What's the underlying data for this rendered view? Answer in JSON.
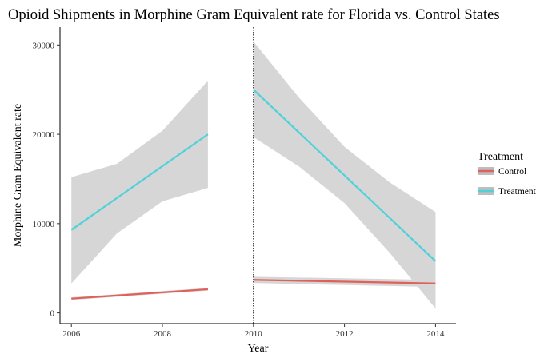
{
  "chart_data": {
    "type": "line",
    "title": "Opioid Shipments in Morphine Gram Equivalent rate for Florida vs. Control States",
    "xlabel": "Year",
    "ylabel": "Morphine Gram Equivalent rate",
    "xlim": [
      2005.75,
      2014.45
    ],
    "ylim": [
      -1200,
      32000
    ],
    "x_ticks": [
      2006,
      2008,
      2010,
      2012,
      2014
    ],
    "y_ticks": [
      0,
      10000,
      20000,
      30000
    ],
    "vline_x": 2010,
    "grid": false,
    "legend": {
      "title": "Treatment",
      "position": "right",
      "entries": [
        "Control",
        "Treatment"
      ]
    },
    "series": [
      {
        "name": "Control",
        "color": "#E0605A",
        "segments": [
          {
            "x": [
              2006,
              2009
            ],
            "y": [
              1600,
              2650
            ],
            "ci_lower": [
              1450,
              2500
            ],
            "ci_upper": [
              1750,
              2800
            ]
          },
          {
            "x": [
              2010,
              2014
            ],
            "y": [
              3700,
              3300
            ],
            "ci_lower": [
              3350,
              2900
            ],
            "ci_upper": [
              4050,
              3700
            ]
          }
        ]
      },
      {
        "name": "Treatment",
        "color": "#4FD1D9",
        "segments": [
          {
            "x": [
              2006,
              2009
            ],
            "y": [
              9300,
              20000
            ],
            "band_x": [
              2006,
              2007,
              2008,
              2009
            ],
            "band_lower": [
              3300,
              8900,
              12500,
              14000
            ],
            "band_upper": [
              15200,
              16700,
              20400,
              26000
            ]
          },
          {
            "x": [
              2010,
              2014
            ],
            "y": [
              25000,
              5800
            ],
            "band_x": [
              2010,
              2011,
              2012,
              2013,
              2014
            ],
            "band_lower": [
              19700,
              16400,
              12300,
              6700,
              500
            ],
            "band_upper": [
              30400,
              24100,
              18600,
              14600,
              11300
            ]
          }
        ]
      }
    ],
    "band_color": "#D6D6D6"
  }
}
